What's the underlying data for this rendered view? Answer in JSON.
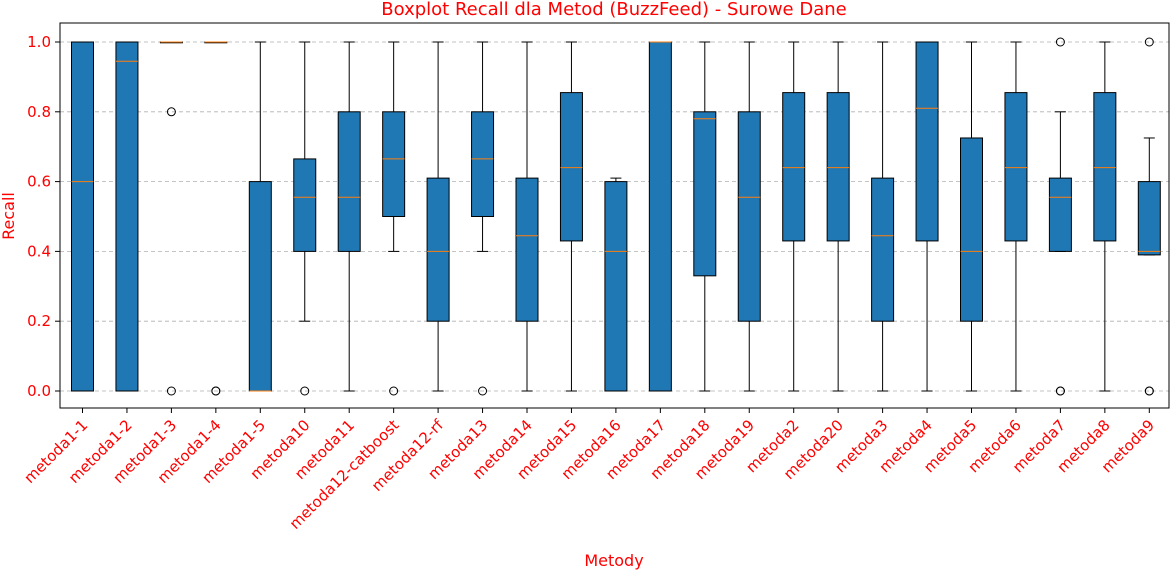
{
  "chart_data": {
    "type": "boxplot",
    "title": "Boxplot Recall dla Metod (BuzzFeed) - Surowe Dane",
    "xlabel": "Metody",
    "ylabel": "Recall",
    "ylim": [
      -0.05,
      1.05
    ],
    "yticks": [
      0.0,
      0.2,
      0.4,
      0.6,
      0.8,
      1.0
    ],
    "ytick_labels": [
      "0.0",
      "0.2",
      "0.4",
      "0.6",
      "0.8",
      "1.0"
    ],
    "grid": "y-dashed",
    "colors": {
      "box": "#1f77b4",
      "median": "#ff7f0e",
      "text": "#ff0000"
    },
    "categories": [
      "metoda1-1",
      "metoda1-2",
      "metoda1-3",
      "metoda1-4",
      "metoda1-5",
      "metoda10",
      "metoda11",
      "metoda12-catboost",
      "metoda12-rf",
      "metoda13",
      "metoda14",
      "metoda15",
      "metoda16",
      "metoda17",
      "metoda18",
      "metoda19",
      "metoda2",
      "metoda20",
      "metoda3",
      "metoda4",
      "metoda5",
      "metoda6",
      "metoda7",
      "metoda8",
      "metoda9"
    ],
    "boxes": [
      {
        "whislo": 0.0,
        "q1": 0.0,
        "med": 0.6,
        "q3": 1.0,
        "whishi": 1.0,
        "fliers": []
      },
      {
        "whislo": 0.0,
        "q1": 0.0,
        "med": 0.945,
        "q3": 1.0,
        "whishi": 1.0,
        "fliers": []
      },
      {
        "whislo": 1.0,
        "q1": 1.0,
        "med": 1.0,
        "q3": 1.0,
        "whishi": 1.0,
        "fliers": [
          0.8,
          0.0
        ]
      },
      {
        "whislo": 1.0,
        "q1": 1.0,
        "med": 1.0,
        "q3": 1.0,
        "whishi": 1.0,
        "fliers": [
          0.0,
          0.0
        ]
      },
      {
        "whislo": 0.0,
        "q1": 0.0,
        "med": 0.0,
        "q3": 0.6,
        "whishi": 1.0,
        "fliers": []
      },
      {
        "whislo": 0.2,
        "q1": 0.4,
        "med": 0.555,
        "q3": 0.665,
        "whishi": 1.0,
        "fliers": [
          0.0
        ]
      },
      {
        "whislo": 0.0,
        "q1": 0.4,
        "med": 0.555,
        "q3": 0.8,
        "whishi": 1.0,
        "fliers": []
      },
      {
        "whislo": 0.4,
        "q1": 0.5,
        "med": 0.665,
        "q3": 0.8,
        "whishi": 1.0,
        "fliers": [
          0.0
        ]
      },
      {
        "whislo": 0.0,
        "q1": 0.2,
        "med": 0.4,
        "q3": 0.61,
        "whishi": 1.0,
        "fliers": []
      },
      {
        "whislo": 0.4,
        "q1": 0.5,
        "med": 0.665,
        "q3": 0.8,
        "whishi": 1.0,
        "fliers": [
          0.0
        ]
      },
      {
        "whislo": 0.0,
        "q1": 0.2,
        "med": 0.445,
        "q3": 0.61,
        "whishi": 1.0,
        "fliers": []
      },
      {
        "whislo": 0.0,
        "q1": 0.43,
        "med": 0.64,
        "q3": 0.855,
        "whishi": 1.0,
        "fliers": []
      },
      {
        "whislo": 0.0,
        "q1": 0.0,
        "med": 0.4,
        "q3": 0.6,
        "whishi": 0.61,
        "fliers": []
      },
      {
        "whislo": 0.0,
        "q1": 0.0,
        "med": 1.0,
        "q3": 1.0,
        "whishi": 1.0,
        "fliers": []
      },
      {
        "whislo": 0.0,
        "q1": 0.33,
        "med": 0.78,
        "q3": 0.8,
        "whishi": 1.0,
        "fliers": []
      },
      {
        "whislo": 0.0,
        "q1": 0.2,
        "med": 0.555,
        "q3": 0.8,
        "whishi": 1.0,
        "fliers": []
      },
      {
        "whislo": 0.0,
        "q1": 0.43,
        "med": 0.64,
        "q3": 0.855,
        "whishi": 1.0,
        "fliers": []
      },
      {
        "whislo": 0.0,
        "q1": 0.43,
        "med": 0.64,
        "q3": 0.855,
        "whishi": 1.0,
        "fliers": []
      },
      {
        "whislo": 0.0,
        "q1": 0.2,
        "med": 0.445,
        "q3": 0.61,
        "whishi": 1.0,
        "fliers": []
      },
      {
        "whislo": 0.0,
        "q1": 0.43,
        "med": 0.81,
        "q3": 1.0,
        "whishi": 1.0,
        "fliers": []
      },
      {
        "whislo": 0.0,
        "q1": 0.2,
        "med": 0.4,
        "q3": 0.725,
        "whishi": 1.0,
        "fliers": []
      },
      {
        "whislo": 0.0,
        "q1": 0.43,
        "med": 0.64,
        "q3": 0.855,
        "whishi": 1.0,
        "fliers": []
      },
      {
        "whislo": 0.4,
        "q1": 0.4,
        "med": 0.555,
        "q3": 0.61,
        "whishi": 0.8,
        "fliers": [
          1.0,
          0.0,
          0.0
        ]
      },
      {
        "whislo": 0.0,
        "q1": 0.43,
        "med": 0.64,
        "q3": 0.855,
        "whishi": 1.0,
        "fliers": []
      },
      {
        "whislo": 0.39,
        "q1": 0.39,
        "med": 0.4,
        "q3": 0.6,
        "whishi": 0.725,
        "fliers": [
          1.0,
          0.0,
          0.0
        ]
      }
    ]
  }
}
